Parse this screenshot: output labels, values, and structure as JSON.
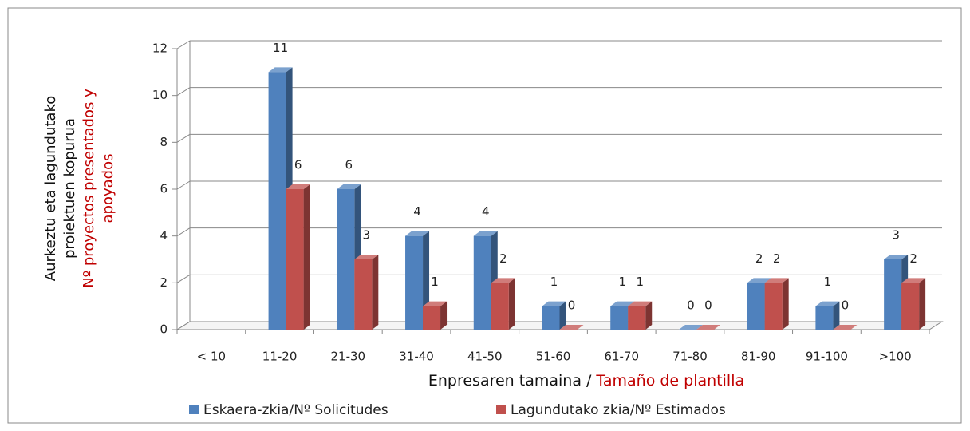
{
  "chart_data": {
    "type": "bar3d",
    "ylabel": [
      [
        "Aurkeztu eta lagundutako",
        "proiektuen kopurua"
      ],
      [
        "Nº proyectos presentados y",
        "apoyados"
      ]
    ],
    "xlabel": [
      "Enpresaren tamaina /",
      "Tamaño de plantilla"
    ],
    "categories": [
      "< 10",
      "11-20",
      "21-30",
      "31-40",
      "41-50",
      "51-60",
      "61-70",
      "71-80",
      "81-90",
      "91-100",
      ">100"
    ],
    "series": [
      {
        "name": "Eskaera-zkia/Nº Solicitudes",
        "color": "#4f81bd",
        "values": [
          null,
          11,
          6,
          4,
          4,
          1,
          1,
          0,
          2,
          1,
          3
        ]
      },
      {
        "name": "Lagundutako zkia/Nº Estimados",
        "color": "#c0504d",
        "values": [
          null,
          6,
          3,
          1,
          2,
          0,
          1,
          0,
          2,
          0,
          2
        ]
      }
    ],
    "ylim": [
      0,
      12
    ],
    "yticks": [
      0,
      2,
      4,
      6,
      8,
      10,
      12
    ],
    "grid": true,
    "legend": "bottom"
  }
}
